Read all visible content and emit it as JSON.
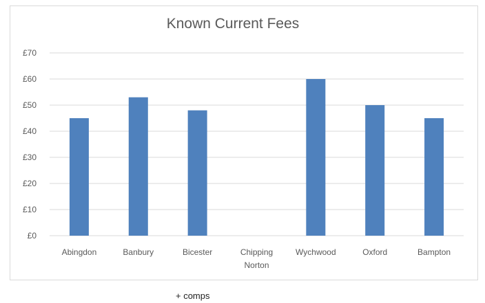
{
  "chart_data": {
    "type": "bar",
    "title": "Known Current Fees",
    "categories": [
      "Abingdon",
      "Banbury",
      "Bicester",
      "Chipping Norton",
      "Wychwood",
      "Oxford",
      "Bampton"
    ],
    "category_lines": [
      [
        "Abingdon"
      ],
      [
        "Banbury"
      ],
      [
        "Bicester"
      ],
      [
        "Chipping",
        "Norton"
      ],
      [
        "Wychwood"
      ],
      [
        "Oxford"
      ],
      [
        "Bampton"
      ]
    ],
    "values": [
      45,
      53,
      48,
      null,
      60,
      50,
      45
    ],
    "ylim": [
      0,
      70
    ],
    "yticks": [
      0,
      10,
      20,
      30,
      40,
      50,
      60,
      70
    ],
    "ytick_labels": [
      "£0",
      "£10",
      "£20",
      "£30",
      "£40",
      "£50",
      "£60",
      "£70"
    ],
    "xlabel": "",
    "ylabel": "",
    "grid": true,
    "legend": "none",
    "bar_color": "#4f81bd",
    "grid_color": "#d9d9d9"
  },
  "footnote": "+ comps"
}
